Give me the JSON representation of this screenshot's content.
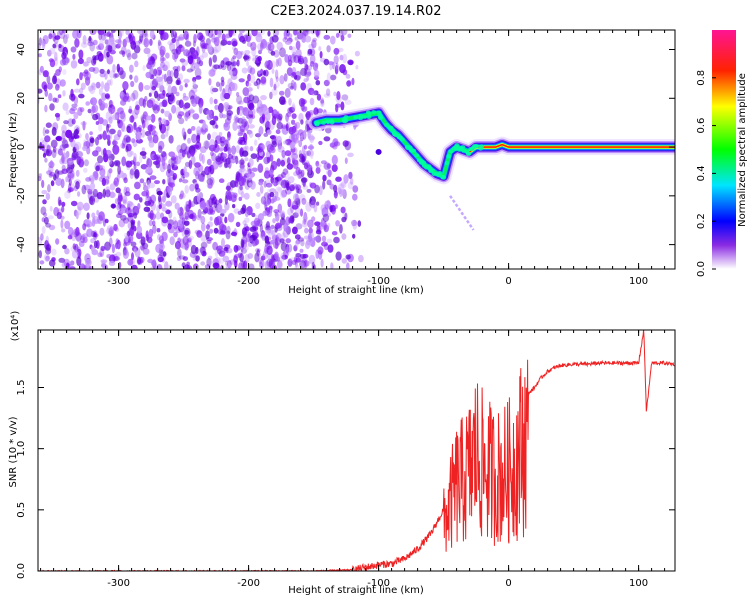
{
  "title": "C2E3.2024.037.19.14.R02",
  "colors": {
    "snr_line": "#ee2222",
    "ridge_core": "#ff2200",
    "axis": "#000000"
  },
  "chart_data": [
    {
      "type": "heatmap",
      "xlabel": "Height of straight line (km)",
      "ylabel": "Frequency (Hz)",
      "xlim": [
        -362,
        128
      ],
      "ylim": [
        -50,
        48
      ],
      "x_ticks": [
        -300,
        -200,
        -100,
        0,
        100
      ],
      "x_tick_labels": [
        "-300",
        "-200",
        "-100",
        "0",
        "100"
      ],
      "y_ticks": [
        -40,
        -20,
        0,
        20,
        40
      ],
      "y_tick_labels": [
        "-40",
        "-20",
        "0",
        "20",
        "40"
      ],
      "noise_region_x": [
        -362,
        -110
      ],
      "ridge": {
        "x": [
          -148,
          -140,
          -130,
          -120,
          -110,
          -100,
          -95,
          -90,
          -85,
          -80,
          -75,
          -70,
          -65,
          -60,
          -55,
          -50,
          -45,
          -40,
          -35,
          -30,
          -25,
          -20,
          -15,
          -10,
          -5,
          0,
          10,
          30,
          60,
          90,
          128
        ],
        "y": [
          10,
          11,
          11,
          12,
          13,
          14,
          10,
          7,
          5,
          2,
          -1,
          -4,
          -7,
          -9,
          -11,
          -12,
          -2,
          0,
          -1,
          -2,
          0,
          0,
          0,
          0,
          1,
          0,
          0,
          0,
          0,
          0,
          0
        ]
      },
      "colorbar": {
        "label": "Normalized spectral amplitude",
        "range": [
          0,
          1
        ],
        "ticks": [
          0.0,
          0.2,
          0.4,
          0.6,
          0.8
        ],
        "tick_labels": [
          "0.0",
          "0.2",
          "0.4",
          "0.6",
          "0.8"
        ]
      }
    },
    {
      "type": "line",
      "xlabel": "Height of straight line (km)",
      "ylabel": "SNR (10 * v/v)",
      "scale_label": "(x10⁴)",
      "xlim": [
        -362,
        128
      ],
      "ylim": [
        0,
        1.97
      ],
      "x_ticks": [
        -300,
        -200,
        -100,
        0,
        100
      ],
      "x_tick_labels": [
        "-300",
        "-200",
        "-100",
        "0",
        "100"
      ],
      "y_ticks": [
        0.0,
        0.5,
        1.0,
        1.5
      ],
      "y_tick_labels": [
        "0.0",
        "0.5",
        "1.0",
        "1.5"
      ],
      "series": [
        {
          "name": "SNR",
          "x": [
            -362,
            -300,
            -250,
            -200,
            -150,
            -120,
            -110,
            -100,
            -90,
            -80,
            -70,
            -60,
            -50,
            -45,
            -40,
            -35,
            -30,
            -25,
            -20,
            -15,
            -10,
            -5,
            0,
            5,
            10,
            15,
            20,
            25,
            30,
            35,
            40,
            50,
            60,
            70,
            80,
            90,
            100,
            104,
            106,
            110,
            120,
            128
          ],
          "y": [
            0.0,
            0.0,
            0.0,
            0.0,
            0.0,
            0.01,
            0.03,
            0.05,
            0.06,
            0.1,
            0.18,
            0.3,
            0.5,
            0.7,
            0.9,
            0.95,
            1.05,
            1.25,
            1.1,
            1.05,
            1.0,
            1.0,
            1.05,
            1.15,
            1.3,
            1.45,
            1.5,
            1.58,
            1.63,
            1.66,
            1.68,
            1.69,
            1.69,
            1.7,
            1.7,
            1.7,
            1.7,
            1.97,
            1.3,
            1.7,
            1.7,
            1.69
          ],
          "spike_region": [
            -50,
            15
          ]
        }
      ]
    }
  ]
}
